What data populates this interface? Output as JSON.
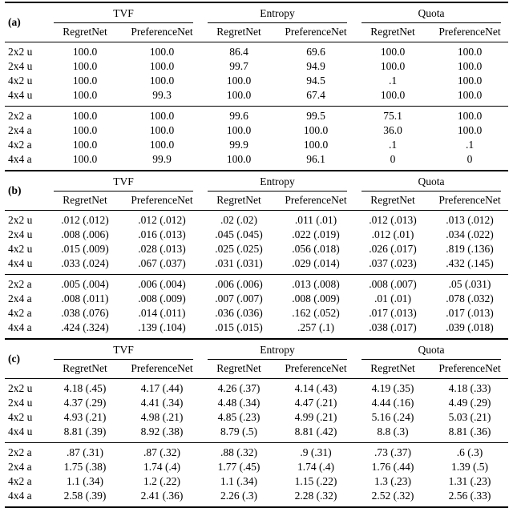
{
  "colors": {
    "text": "#000000",
    "rule": "#000000",
    "background": "#ffffff"
  },
  "tables": [
    {
      "label": "(a)",
      "groups": [
        "TVF",
        "Entropy",
        "Quota"
      ],
      "sub_headers": [
        "RegretNet",
        "PreferenceNet",
        "RegretNet",
        "PreferenceNet",
        "RegretNet",
        "PreferenceNet"
      ],
      "blocks": [
        {
          "rows": [
            {
              "label": "2x2 u",
              "values": [
                "100.0",
                "100.0",
                "86.4",
                "69.6",
                "100.0",
                "100.0"
              ]
            },
            {
              "label": "2x4 u",
              "values": [
                "100.0",
                "100.0",
                "99.7",
                "94.9",
                "100.0",
                "100.0"
              ]
            },
            {
              "label": "4x2 u",
              "values": [
                "100.0",
                "100.0",
                "100.0",
                "94.5",
                ".1",
                "100.0"
              ]
            },
            {
              "label": "4x4 u",
              "values": [
                "100.0",
                "99.3",
                "100.0",
                "67.4",
                "100.0",
                "100.0"
              ]
            }
          ]
        },
        {
          "rows": [
            {
              "label": "2x2 a",
              "values": [
                "100.0",
                "100.0",
                "99.6",
                "99.5",
                "75.1",
                "100.0"
              ]
            },
            {
              "label": "2x4 a",
              "values": [
                "100.0",
                "100.0",
                "100.0",
                "100.0",
                "36.0",
                "100.0"
              ]
            },
            {
              "label": "4x2 a",
              "values": [
                "100.0",
                "100.0",
                "99.9",
                "100.0",
                ".1",
                ".1"
              ]
            },
            {
              "label": "4x4 a",
              "values": [
                "100.0",
                "99.9",
                "100.0",
                "96.1",
                "0",
                "0"
              ]
            }
          ]
        }
      ]
    },
    {
      "label": "(b)",
      "groups": [
        "TVF",
        "Entropy",
        "Quota"
      ],
      "sub_headers": [
        "RegretNet",
        "PreferenceNet",
        "RegretNet",
        "PreferenceNet",
        "RegretNet",
        "PreferenceNet"
      ],
      "blocks": [
        {
          "rows": [
            {
              "label": "2x2 u",
              "values": [
                ".012 (.012)",
                ".012 (.012)",
                ".02 (.02)",
                ".011 (.01)",
                ".012 (.013)",
                ".013 (.012)"
              ]
            },
            {
              "label": "2x4 u",
              "values": [
                ".008 (.006)",
                ".016 (.013)",
                ".045 (.045)",
                ".022 (.019)",
                ".012 (.01)",
                ".034 (.022)"
              ]
            },
            {
              "label": "4x2 u",
              "values": [
                ".015 (.009)",
                ".028 (.013)",
                ".025 (.025)",
                ".056 (.018)",
                ".026 (.017)",
                ".819 (.136)"
              ]
            },
            {
              "label": "4x4 u",
              "values": [
                ".033 (.024)",
                ".067 (.037)",
                ".031 (.031)",
                ".029 (.014)",
                ".037 (.023)",
                ".432 (.145)"
              ]
            }
          ]
        },
        {
          "rows": [
            {
              "label": "2x2 a",
              "values": [
                ".005 (.004)",
                ".006 (.004)",
                ".006 (.006)",
                ".013 (.008)",
                ".008 (.007)",
                ".05 (.031)"
              ]
            },
            {
              "label": "2x4 a",
              "values": [
                ".008 (.011)",
                ".008 (.009)",
                ".007 (.007)",
                ".008 (.009)",
                ".01 (.01)",
                ".078 (.032)"
              ]
            },
            {
              "label": "4x2 a",
              "values": [
                ".038 (.076)",
                ".014 (.011)",
                ".036 (.036)",
                ".162 (.052)",
                ".017 (.013)",
                ".017 (.013)"
              ]
            },
            {
              "label": "4x4 a",
              "values": [
                ".424 (.324)",
                ".139 (.104)",
                ".015 (.015)",
                ".257 (.1)",
                ".038 (.017)",
                ".039 (.018)"
              ]
            }
          ]
        }
      ]
    },
    {
      "label": "(c)",
      "groups": [
        "TVF",
        "Entropy",
        "Quota"
      ],
      "sub_headers": [
        "RegretNet",
        "PreferenceNet",
        "RegretNet",
        "PreferenceNet",
        "RegretNet",
        "PreferenceNet"
      ],
      "blocks": [
        {
          "rows": [
            {
              "label": "2x2 u",
              "values": [
                "4.18 (.45)",
                "4.17 (.44)",
                "4.26 (.37)",
                "4.14 (.43)",
                "4.19 (.35)",
                "4.18 (.33)"
              ]
            },
            {
              "label": "2x4 u",
              "values": [
                "4.37 (.29)",
                "4.41 (.34)",
                "4.48 (.34)",
                "4.47 (.21)",
                "4.44 (.16)",
                "4.49 (.29)"
              ]
            },
            {
              "label": "4x2 u",
              "values": [
                "4.93 (.21)",
                "4.98 (.21)",
                "4.85 (.23)",
                "4.99 (.21)",
                "5.16 (.24)",
                "5.03 (.21)"
              ]
            },
            {
              "label": "4x4 u",
              "values": [
                "8.81 (.39)",
                "8.92 (.38)",
                "8.79 (.5)",
                "8.81 (.42)",
                "8.8 (.3)",
                "8.81 (.36)"
              ]
            }
          ]
        },
        {
          "rows": [
            {
              "label": "2x2 a",
              "values": [
                ".87 (.31)",
                ".87 (.32)",
                ".88 (.32)",
                ".9 (.31)",
                ".73 (.37)",
                ".6 (.3)"
              ]
            },
            {
              "label": "2x4 a",
              "values": [
                "1.75 (.38)",
                "1.74 (.4)",
                "1.77 (.45)",
                "1.74 (.4)",
                "1.76 (.44)",
                "1.39 (.5)"
              ]
            },
            {
              "label": "4x2 a",
              "values": [
                "1.1 (.34)",
                "1.2 (.22)",
                "1.1 (.34)",
                "1.15 (.22)",
                "1.3 (.23)",
                "1.31 (.23)"
              ]
            },
            {
              "label": "4x4 a",
              "values": [
                "2.58 (.39)",
                "2.41 (.36)",
                "2.26 (.3)",
                "2.28 (.32)",
                "2.52 (.32)",
                "2.56 (.33)"
              ]
            }
          ]
        }
      ]
    }
  ]
}
